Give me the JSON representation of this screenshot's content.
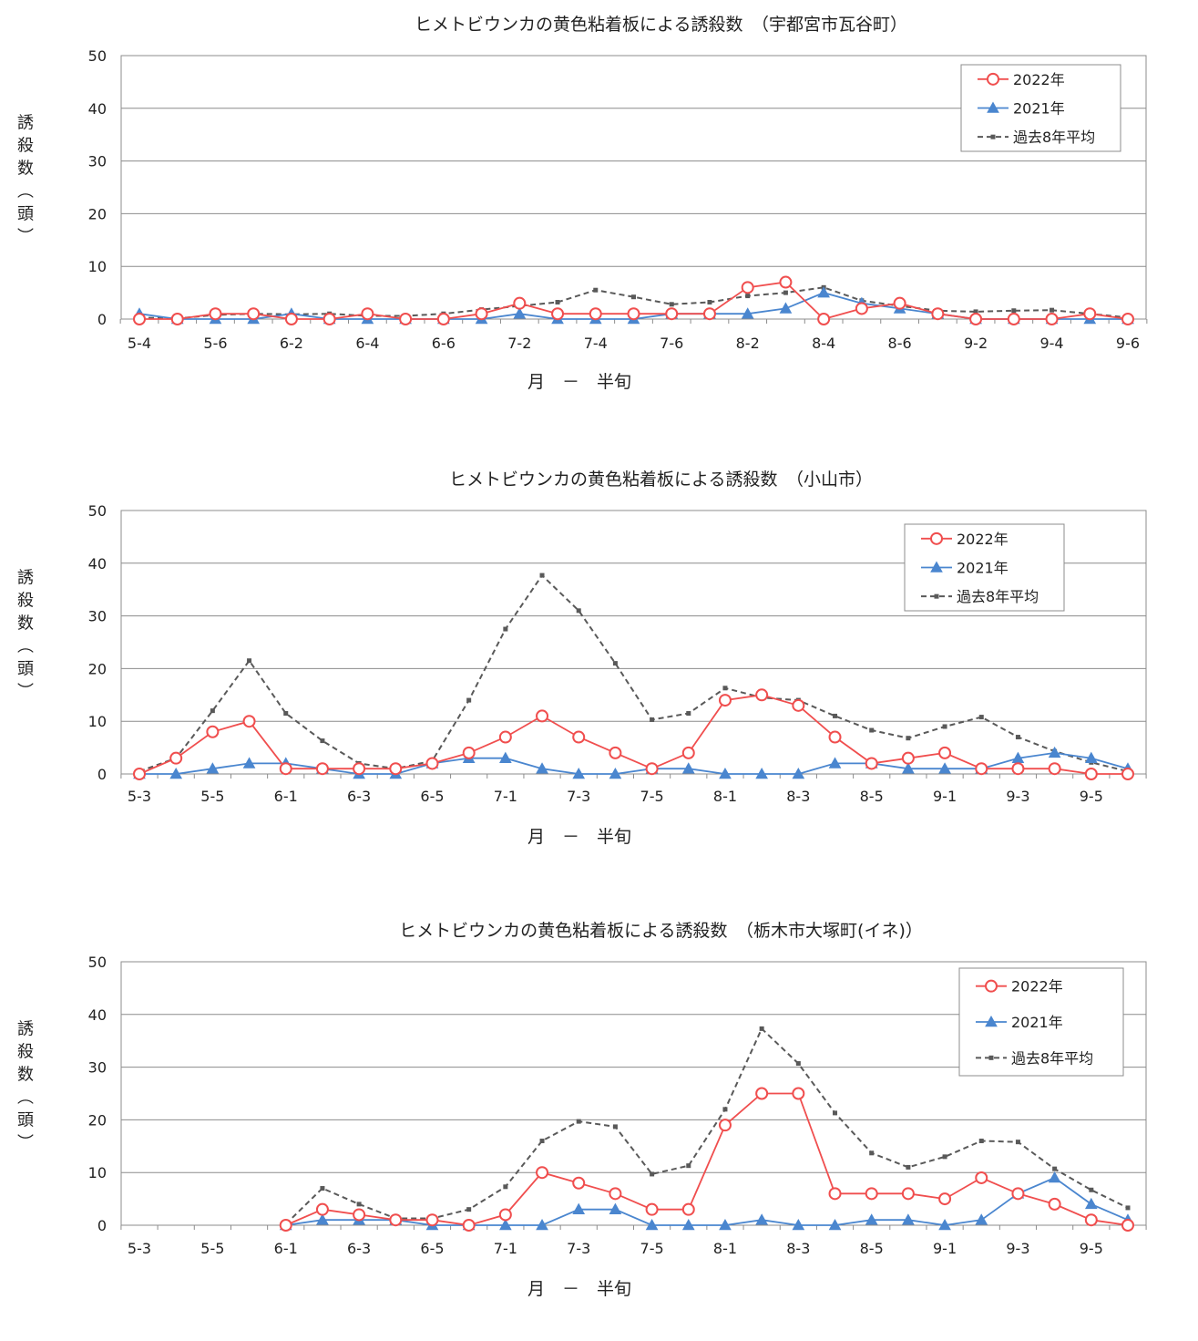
{
  "chart_data": [
    {
      "type": "line",
      "title": "ヒメトビウンカの黄色粘着板による誘殺数　（宇都宮市瓦谷町）",
      "xlabel": "月　－　半旬",
      "ylabel": "誘殺数（頭）",
      "ylim": [
        0,
        50
      ],
      "yticks": [
        0,
        10,
        20,
        30,
        40,
        50
      ],
      "x": [
        "5-4",
        "5-5",
        "5-6",
        "6-1",
        "6-2",
        "6-3",
        "6-4",
        "6-5",
        "6-6",
        "7-1",
        "7-2",
        "7-3",
        "7-4",
        "7-5",
        "7-6",
        "8-1",
        "8-2",
        "8-3",
        "8-4",
        "8-5",
        "8-6",
        "9-1",
        "9-2",
        "9-3",
        "9-4",
        "9-5",
        "9-6"
      ],
      "xtick_labels": [
        "5-4",
        "",
        "5-6",
        "",
        "6-2",
        "",
        "6-4",
        "",
        "6-6",
        "",
        "7-2",
        "",
        "7-4",
        "",
        "7-6",
        "",
        "8-2",
        "",
        "8-4",
        "",
        "8-6",
        "",
        "9-2",
        "",
        "9-4",
        "",
        "9-6"
      ],
      "legend_position": "top-right",
      "series": [
        {
          "name": "2022年",
          "color": "#F04E4E",
          "marker": "circle",
          "values": [
            0,
            0,
            1,
            1,
            0,
            0,
            1,
            0,
            0,
            1,
            3,
            1,
            1,
            1,
            1,
            1,
            6,
            7,
            0,
            2,
            3,
            1,
            0,
            0,
            0,
            1,
            0
          ]
        },
        {
          "name": "2021年",
          "color": "#4A86CF",
          "marker": "triangle",
          "values": [
            1,
            0,
            0,
            0,
            1,
            0,
            0,
            0,
            0,
            0,
            1,
            0,
            0,
            0,
            1,
            1,
            1,
            2,
            5,
            3,
            2,
            1,
            0,
            0,
            0,
            0,
            0
          ]
        },
        {
          "name": "過去8年平均",
          "color": "#595959",
          "marker": "square",
          "dashed": true,
          "values": [
            0.3,
            0.1,
            0.8,
            1.0,
            0.9,
            1.0,
            0.6,
            0.6,
            1.0,
            1.8,
            2.5,
            3.2,
            5.5,
            4.2,
            2.8,
            3.2,
            4.4,
            5.0,
            6.0,
            3.5,
            2.5,
            1.6,
            1.4,
            1.6,
            1.7,
            1.0,
            0.3
          ]
        }
      ]
    },
    {
      "type": "line",
      "title": "ヒメトビウンカの黄色粘着板による誘殺数　（小山市）",
      "xlabel": "月　－　半旬",
      "ylabel": "誘殺数（頭）",
      "ylim": [
        0,
        50
      ],
      "yticks": [
        0,
        10,
        20,
        30,
        40,
        50
      ],
      "x": [
        "5-3",
        "5-4",
        "5-5",
        "5-6",
        "6-1",
        "6-2",
        "6-3",
        "6-4",
        "6-5",
        "6-6",
        "7-1",
        "7-2",
        "7-3",
        "7-4",
        "7-5",
        "7-6",
        "8-1",
        "8-2",
        "8-3",
        "8-4",
        "8-5",
        "8-6",
        "9-1",
        "9-2",
        "9-3",
        "9-4",
        "9-5",
        "9-6"
      ],
      "xtick_labels": [
        "5-3",
        "",
        "5-5",
        "",
        "6-1",
        "",
        "6-3",
        "",
        "6-5",
        "",
        "7-1",
        "",
        "7-3",
        "",
        "7-5",
        "",
        "8-1",
        "",
        "8-3",
        "",
        "8-5",
        "",
        "9-1",
        "",
        "9-3",
        "",
        "9-5",
        ""
      ],
      "legend_position": "top-right",
      "series": [
        {
          "name": "2022年",
          "color": "#F04E4E",
          "marker": "circle",
          "values": [
            0,
            3,
            8,
            10,
            1,
            1,
            1,
            1,
            2,
            4,
            7,
            11,
            7,
            4,
            1,
            4,
            14,
            15,
            13,
            7,
            2,
            3,
            4,
            1,
            1,
            1,
            0,
            0
          ]
        },
        {
          "name": "2021年",
          "color": "#4A86CF",
          "marker": "triangle",
          "values": [
            0,
            0,
            1,
            2,
            2,
            1,
            0,
            0,
            2,
            3,
            3,
            1,
            0,
            0,
            1,
            1,
            0,
            0,
            0,
            2,
            2,
            1,
            1,
            1,
            3,
            4,
            3,
            1
          ]
        },
        {
          "name": "過去8年平均",
          "color": "#595959",
          "marker": "square",
          "dashed": true,
          "values": [
            0.5,
            3.0,
            12.0,
            21.5,
            11.5,
            6.3,
            2.0,
            1.0,
            2.5,
            14.0,
            27.5,
            37.7,
            31.0,
            21.0,
            10.3,
            11.5,
            16.3,
            14.5,
            14.0,
            11.0,
            8.3,
            6.8,
            9.0,
            10.8,
            7.0,
            4.3,
            2.2,
            0.5
          ]
        }
      ]
    },
    {
      "type": "line",
      "title": "ヒメトビウンカの黄色粘着板による誘殺数　（栃木市大塚町(イネ)）",
      "xlabel": "月　－　半旬",
      "ylabel": "誘殺数（頭）",
      "ylim": [
        0,
        50
      ],
      "yticks": [
        0,
        10,
        20,
        30,
        40,
        50
      ],
      "x": [
        "5-3",
        "5-4",
        "5-5",
        "5-6",
        "6-1",
        "6-2",
        "6-3",
        "6-4",
        "6-5",
        "6-6",
        "7-1",
        "7-2",
        "7-3",
        "7-4",
        "7-5",
        "7-6",
        "8-1",
        "8-2",
        "8-3",
        "8-4",
        "8-5",
        "8-6",
        "9-1",
        "9-2",
        "9-3",
        "9-4",
        "9-5",
        "9-6"
      ],
      "xtick_labels": [
        "5-3",
        "",
        "5-5",
        "",
        "6-1",
        "",
        "6-3",
        "",
        "6-5",
        "",
        "7-1",
        "",
        "7-3",
        "",
        "7-5",
        "",
        "8-1",
        "",
        "8-3",
        "",
        "8-5",
        "",
        "9-1",
        "",
        "9-3",
        "",
        "9-5",
        ""
      ],
      "legend_position": "top-right",
      "series": [
        {
          "name": "2022年",
          "color": "#F04E4E",
          "marker": "circle",
          "values": [
            null,
            null,
            null,
            null,
            0,
            3,
            2,
            1,
            1,
            0,
            2,
            10,
            8,
            6,
            3,
            3,
            19,
            25,
            25,
            6,
            6,
            6,
            5,
            9,
            6,
            4,
            1,
            0
          ]
        },
        {
          "name": "2021年",
          "color": "#4A86CF",
          "marker": "triangle",
          "values": [
            null,
            null,
            null,
            null,
            0,
            1,
            1,
            1,
            0,
            0,
            0,
            0,
            3,
            3,
            0,
            0,
            0,
            1,
            0,
            0,
            1,
            1,
            0,
            1,
            6,
            9,
            4,
            1
          ]
        },
        {
          "name": "過去8年平均",
          "color": "#595959",
          "marker": "square",
          "dashed": true,
          "values": [
            null,
            null,
            null,
            null,
            0.2,
            7.0,
            4.0,
            1.3,
            1.3,
            3.0,
            7.3,
            16.0,
            19.7,
            18.7,
            9.7,
            11.3,
            22.0,
            37.3,
            30.7,
            21.3,
            13.7,
            11.0,
            13.0,
            16.0,
            15.8,
            10.7,
            6.7,
            3.3
          ]
        }
      ]
    }
  ]
}
